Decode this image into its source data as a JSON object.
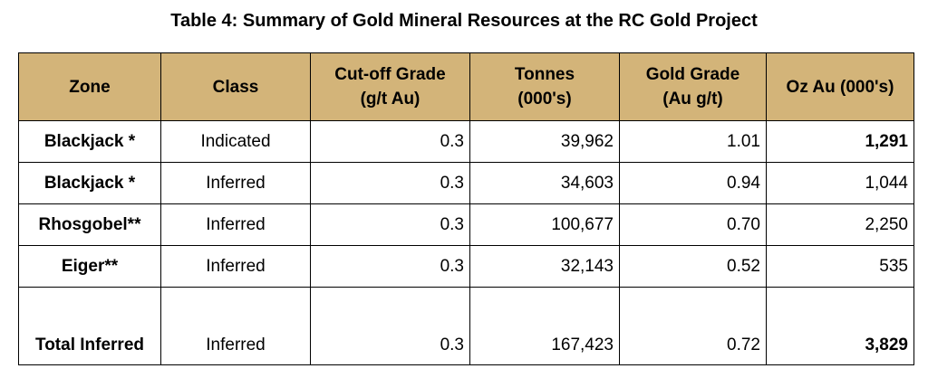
{
  "header": {
    "title": "Table 4: Summary of Gold Mineral Resources at the RC Gold Project"
  },
  "table": {
    "columns": [
      "Zone",
      "Class",
      "Cut-off Grade\n(g/t Au)",
      "Tonnes\n(000's)",
      "Gold Grade\n(Au g/t)",
      "Oz Au (000's)"
    ],
    "rows": [
      [
        "Blackjack *",
        "Indicated",
        "0.3",
        "39,962",
        "1.01",
        "1,291"
      ],
      [
        "Blackjack *",
        "Inferred",
        "0.3",
        "34,603",
        "0.94",
        "1,044"
      ],
      [
        "Rhosgobel**",
        "Inferred",
        "0.3",
        "100,677",
        "0.70",
        "2,250"
      ],
      [
        "Eiger**",
        "Inferred",
        "0.3",
        "32,143",
        "0.52",
        "535"
      ],
      [
        "Total Inferred",
        "Inferred",
        "0.3",
        "167,423",
        "0.72",
        "3,829"
      ]
    ]
  }
}
